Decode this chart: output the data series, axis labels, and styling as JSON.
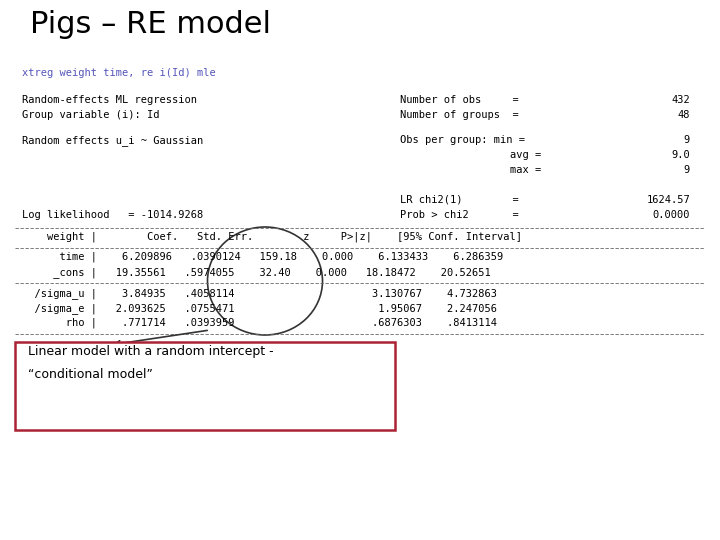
{
  "title": "Pigs – RE model",
  "command": "xtreg weight time, re i(Id) mle",
  "bg_color": "#ffffff",
  "title_color": "#000000",
  "command_color": "#5555bb",
  "text_color": "#000000",
  "line1_left": "Random-effects ML regression",
  "line2_left": "Group variable (i): Id",
  "line1_right_label": "Number of obs     =",
  "line1_right_val": "432",
  "line2_right_label": "Number of groups  =",
  "line2_right_val": "48",
  "gaussian_line": "Random effects u_i ~ Gaussian",
  "obs_label1": "Obs per group: min =",
  "obs_val1": "9",
  "obs_label2": "avg =",
  "obs_val2": "9.0",
  "obs_label3": "max =",
  "obs_val3": "9",
  "lr_label1": "LR chi2(1)        =",
  "lr_val1": "1624.57",
  "lr_label2": "Prob > chi2       =",
  "lr_val2": "0.0000",
  "loglik_line": "Log likelihood   = -1014.9268",
  "sep_char": "- ",
  "table_header": "    weight |        Coef.   Std. Err.        z     P>|z|    [95% Conf. Interval]",
  "table_row1": "      time |    6.209896   .0390124   159.18    0.000    6.133433    6.286359",
  "table_row2": "     _cons |   19.35561   .5974055    32.40    0.000   18.18472    20.52651",
  "sigma_row1": "  /sigma_u |    3.84935   .4058114                      3.130767    4.732863",
  "sigma_row2": "  /sigma_e |   2.093625   .0755471                       1.95067    2.247056",
  "sigma_row3": "       rho |    .771714   .0393959                      .6876303    .8413114",
  "annotation_line1": "Linear model with a random intercept -",
  "annotation_line2": "“conditional model”",
  "box_color": "#aa2233",
  "dashes": "- - - - - - - - - - - - - - - - - - - - - - - - - - - - - - - - - - - - - - - - - - - - - - - - - - - - - - - - - - - -"
}
